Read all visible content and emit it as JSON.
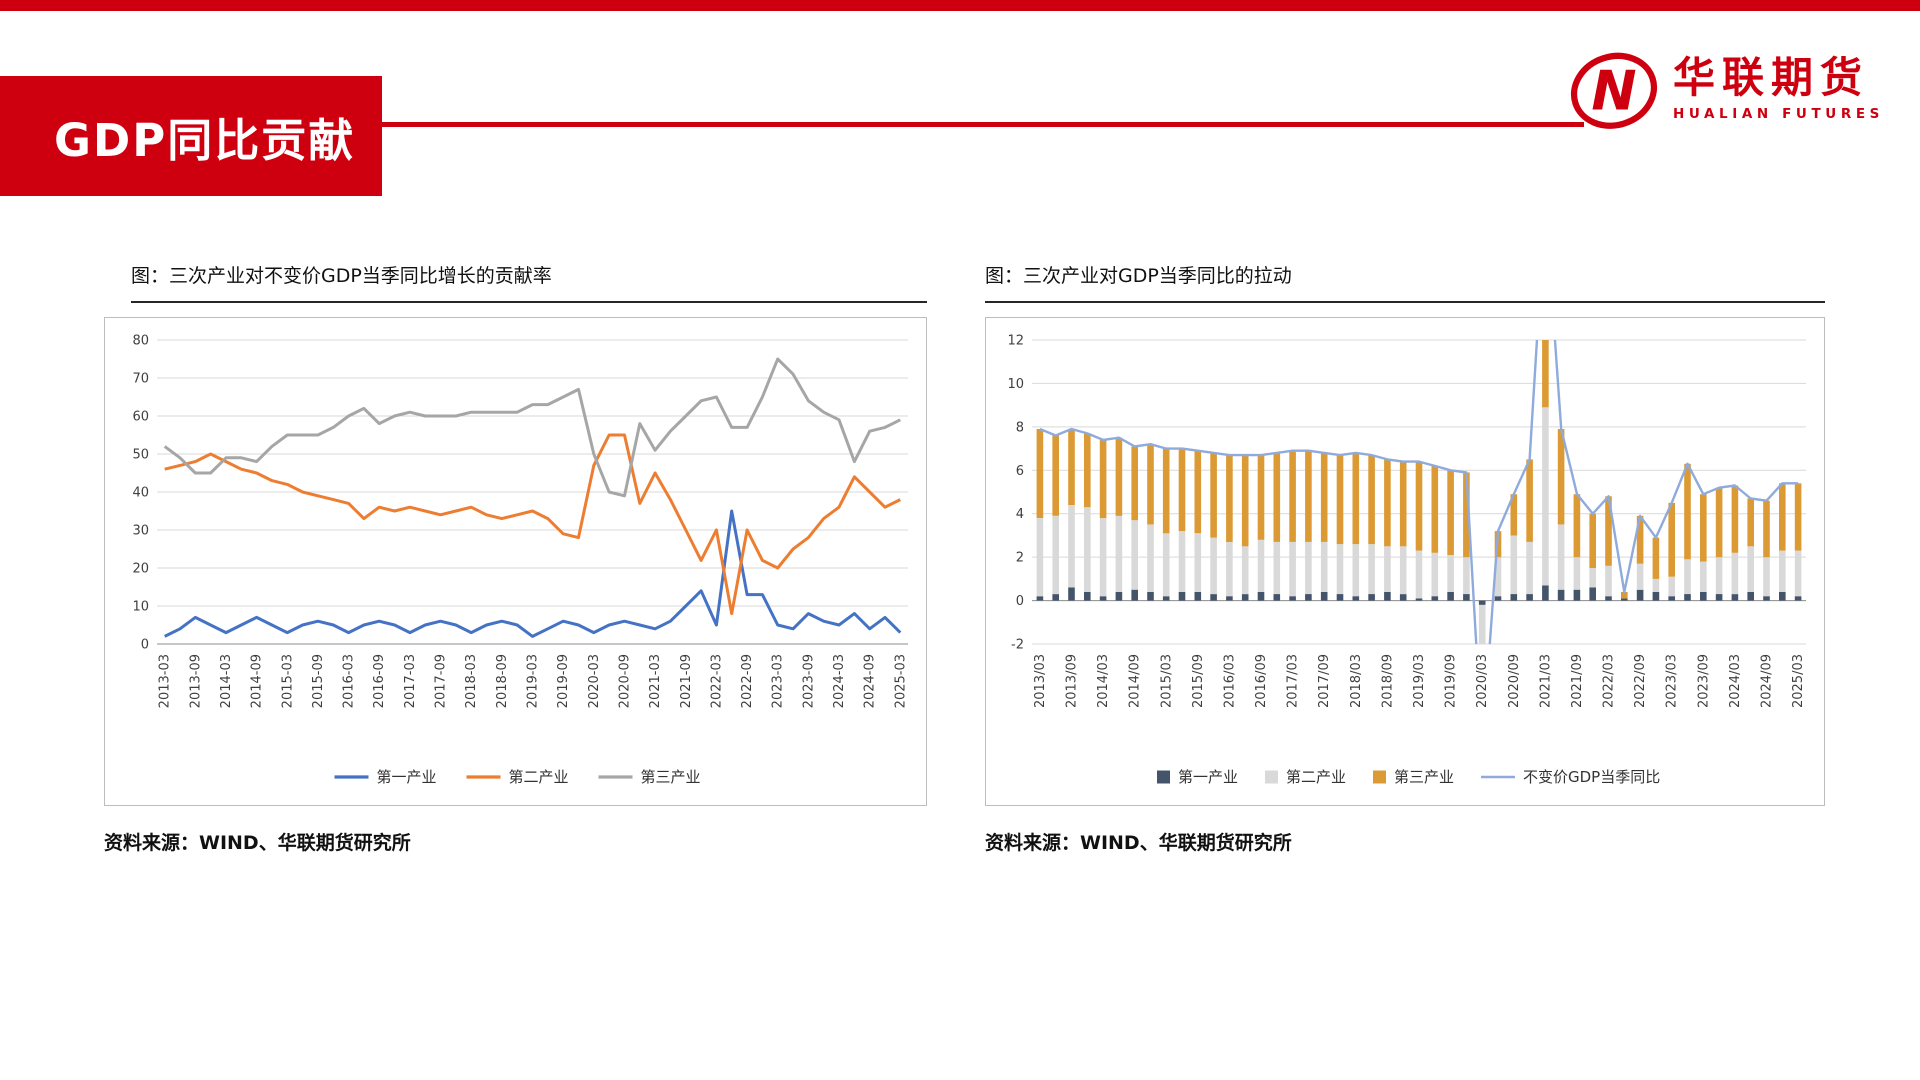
{
  "theme": {
    "accent_red": "#ce0010",
    "grid_color": "#d9d9d9",
    "axis_color": "#8c8c8c"
  },
  "header": {
    "title": "GDP同比贡献",
    "logo_mark": "N",
    "logo_cn": "华联期货",
    "logo_en": "HUALIAN FUTURES"
  },
  "chart_data": [
    {
      "type": "line",
      "title": "图：三次产业对不变价GDP当季同比增长的贡献率",
      "source": "资料来源：WIND、华联期货研究所",
      "ylim": [
        0,
        80
      ],
      "ystep": 10,
      "grid": true,
      "legend_position": "bottom",
      "xtick_every": 2,
      "x": [
        "2013-03",
        "2013-06",
        "2013-09",
        "2013-12",
        "2014-03",
        "2014-06",
        "2014-09",
        "2014-12",
        "2015-03",
        "2015-06",
        "2015-09",
        "2015-12",
        "2016-03",
        "2016-06",
        "2016-09",
        "2016-12",
        "2017-03",
        "2017-06",
        "2017-09",
        "2017-12",
        "2018-03",
        "2018-06",
        "2018-09",
        "2018-12",
        "2019-03",
        "2019-06",
        "2019-09",
        "2019-12",
        "2020-03",
        "2020-06",
        "2020-09",
        "2020-12",
        "2021-03",
        "2021-06",
        "2021-09",
        "2021-12",
        "2022-03",
        "2022-06",
        "2022-09",
        "2022-12",
        "2023-03",
        "2023-06",
        "2023-09",
        "2023-12",
        "2024-03",
        "2024-06",
        "2024-09",
        "2024-12",
        "2025-03"
      ],
      "series": [
        {
          "name": "第一产业",
          "color": "#4472C4",
          "values": [
            2,
            4,
            7,
            5,
            3,
            5,
            7,
            5,
            3,
            5,
            6,
            5,
            3,
            5,
            6,
            5,
            3,
            5,
            6,
            5,
            3,
            5,
            6,
            5,
            2,
            4,
            6,
            5,
            3,
            5,
            6,
            5,
            4,
            6,
            10,
            14,
            5,
            35,
            13,
            13,
            5,
            4,
            8,
            6,
            5,
            8,
            4,
            7,
            3
          ]
        },
        {
          "name": "第二产业",
          "color": "#ED7D31",
          "values": [
            46,
            47,
            48,
            50,
            48,
            46,
            45,
            43,
            42,
            40,
            39,
            38,
            37,
            33,
            36,
            35,
            36,
            35,
            34,
            35,
            36,
            34,
            33,
            34,
            35,
            33,
            29,
            28,
            47,
            55,
            55,
            37,
            45,
            38,
            30,
            22,
            30,
            8,
            30,
            22,
            20,
            25,
            28,
            33,
            36,
            44,
            40,
            36,
            38
          ]
        },
        {
          "name": "第三产业",
          "color": "#A6A6A6",
          "values": [
            52,
            49,
            45,
            45,
            49,
            49,
            48,
            52,
            55,
            55,
            55,
            57,
            60,
            62,
            58,
            60,
            61,
            60,
            60,
            60,
            61,
            61,
            61,
            61,
            63,
            63,
            65,
            67,
            50,
            40,
            39,
            58,
            51,
            56,
            60,
            64,
            65,
            57,
            57,
            65,
            75,
            71,
            64,
            61,
            59,
            48,
            56,
            57,
            59
          ]
        }
      ]
    },
    {
      "type": "bar",
      "subtype": "stacked-bar-with-line",
      "title": "图：三次产业对GDP当季同比的拉动",
      "source": "资料来源：WIND、华联期货研究所",
      "ylim": [
        -2,
        12
      ],
      "ystep": 2,
      "grid": true,
      "legend_position": "bottom",
      "xtick_every": 2,
      "x": [
        "2013/03",
        "2013/06",
        "2013/09",
        "2013/12",
        "2014/03",
        "2014/06",
        "2014/09",
        "2014/12",
        "2015/03",
        "2015/06",
        "2015/09",
        "2015/12",
        "2016/03",
        "2016/06",
        "2016/09",
        "2016/12",
        "2017/03",
        "2017/06",
        "2017/09",
        "2017/12",
        "2018/03",
        "2018/06",
        "2018/09",
        "2018/12",
        "2019/03",
        "2019/06",
        "2019/09",
        "2019/12",
        "2020/03",
        "2020/06",
        "2020/09",
        "2020/12",
        "2021/03",
        "2021/06",
        "2021/09",
        "2021/12",
        "2022/03",
        "2022/06",
        "2022/09",
        "2022/12",
        "2023/03",
        "2023/06",
        "2023/09",
        "2023/12",
        "2024/03",
        "2024/06",
        "2024/09",
        "2024/12",
        "2025/03"
      ],
      "bar_series": [
        {
          "name": "第一产业",
          "color": "#44546A",
          "values": [
            0.2,
            0.3,
            0.6,
            0.4,
            0.2,
            0.4,
            0.5,
            0.4,
            0.2,
            0.4,
            0.4,
            0.3,
            0.2,
            0.3,
            0.4,
            0.3,
            0.2,
            0.3,
            0.4,
            0.3,
            0.2,
            0.3,
            0.4,
            0.3,
            0.1,
            0.2,
            0.4,
            0.3,
            -0.2,
            0.2,
            0.3,
            0.3,
            0.7,
            0.5,
            0.5,
            0.6,
            0.2,
            0.1,
            0.5,
            0.4,
            0.2,
            0.3,
            0.4,
            0.3,
            0.3,
            0.4,
            0.2,
            0.4,
            0.2
          ]
        },
        {
          "name": "第二产业",
          "color": "#D9D9D9",
          "values": [
            3.6,
            3.6,
            3.8,
            3.9,
            3.6,
            3.5,
            3.2,
            3.1,
            2.9,
            2.8,
            2.7,
            2.6,
            2.5,
            2.2,
            2.4,
            2.4,
            2.5,
            2.4,
            2.3,
            2.3,
            2.4,
            2.3,
            2.1,
            2.2,
            2.2,
            2.0,
            1.7,
            1.7,
            -3.2,
            1.8,
            2.7,
            2.4,
            8.2,
            3.0,
            1.5,
            0.9,
            1.4,
            0.0,
            1.2,
            0.6,
            0.9,
            1.6,
            1.4,
            1.7,
            1.9,
            2.1,
            1.8,
            1.9,
            2.1
          ]
        },
        {
          "name": "第三产业",
          "color": "#DB9A33",
          "values": [
            4.1,
            3.7,
            3.5,
            3.4,
            3.6,
            3.6,
            3.4,
            3.7,
            3.9,
            3.8,
            3.8,
            3.9,
            4.0,
            4.2,
            3.9,
            4.1,
            4.2,
            4.2,
            4.1,
            4.1,
            4.2,
            4.1,
            4.0,
            3.9,
            4.1,
            4.0,
            3.9,
            3.9,
            -3.4,
            1.2,
            1.9,
            3.8,
            9.4,
            4.4,
            2.9,
            2.5,
            3.2,
            0.3,
            2.2,
            1.9,
            3.4,
            4.4,
            3.1,
            3.2,
            3.1,
            2.2,
            2.6,
            3.1,
            3.1
          ]
        }
      ],
      "line_series": {
        "name": "不变价GDP当季同比",
        "color": "#8FAADC",
        "values": [
          7.9,
          7.6,
          7.9,
          7.7,
          7.4,
          7.5,
          7.1,
          7.2,
          7.0,
          7.0,
          6.9,
          6.8,
          6.7,
          6.7,
          6.7,
          6.8,
          6.9,
          6.9,
          6.8,
          6.7,
          6.8,
          6.7,
          6.5,
          6.4,
          6.4,
          6.2,
          6.0,
          5.9,
          -6.8,
          3.2,
          4.9,
          6.5,
          18.3,
          7.9,
          4.9,
          4.0,
          4.8,
          0.4,
          3.9,
          2.9,
          4.5,
          6.3,
          4.9,
          5.2,
          5.3,
          4.7,
          4.6,
          5.4,
          5.4
        ]
      }
    }
  ]
}
